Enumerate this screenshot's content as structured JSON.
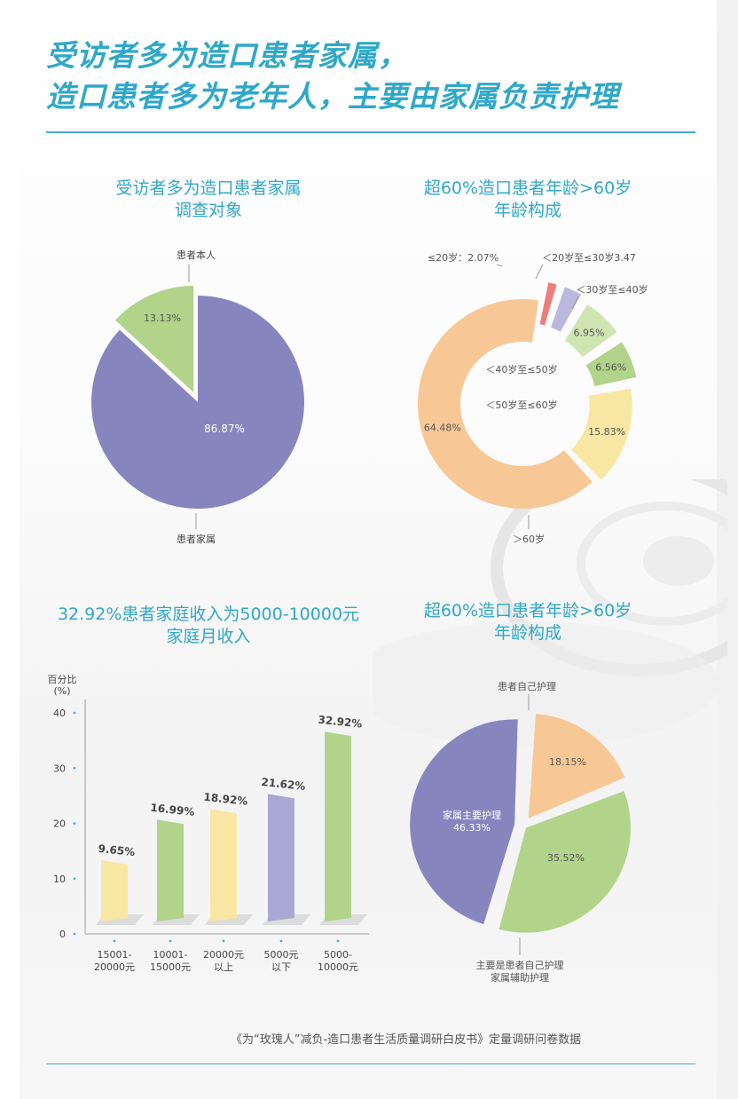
{
  "header": {
    "line1": "受访者多为造口患者家属，",
    "line2": "造口患者多为老年人，主要由家属负责护理"
  },
  "panels": {
    "respondents": {
      "title1": "受访者多为造口患者家属",
      "title2": "调查对象"
    },
    "age": {
      "title1": "超60%造口患者年龄>60岁",
      "title2": "年龄构成"
    },
    "income": {
      "title1": "32.92%患者家庭收入为5000-10000元",
      "title2": "家庭月收入"
    },
    "care": {
      "title1": "超60%造口患者年龄>60岁",
      "title2": "年龄构成"
    }
  },
  "footer": {
    "source": "《为“玫瑰人”减负-造口患者生活质量调研白皮书》定量调研问卷数据"
  },
  "colors": {
    "accent": "#2fa8c8",
    "purple": "#8685be",
    "green": "#b1d38a",
    "orange": "#f7c896",
    "yellow": "#f8e7a3",
    "red": "#ec7d7a",
    "lavender": "#bab8dc",
    "lightgreen": "#cfe6b3"
  },
  "chart_data": [
    {
      "type": "pie",
      "title": "受访者多为造口患者家属",
      "subtitle": "调查对象",
      "slices": [
        {
          "label": "患者家属",
          "value": 86.87,
          "value_label": "86.87%",
          "color": "#8685be"
        },
        {
          "label": "患者本人",
          "value": 13.13,
          "value_label": "13.13%",
          "color": "#b1d38a"
        }
      ]
    },
    {
      "type": "pie",
      "title": "超60%造口患者年龄>60岁",
      "subtitle": "年龄构成",
      "donut": true,
      "slices": [
        {
          "label": "≤20岁：2.07%",
          "value": 2.07,
          "value_label": "",
          "color": "#ec7d7a"
        },
        {
          "label": "＜20岁至≤30岁3.47",
          "value": 3.47,
          "value_label": "",
          "color": "#bab8dc"
        },
        {
          "label": "＜30岁至≤40岁",
          "value": 6.95,
          "value_label": "6.95%",
          "color": "#cfe6b3"
        },
        {
          "label": "＜40岁至≤50岁",
          "value": 6.56,
          "value_label": "6.56%",
          "color": "#b1d38a"
        },
        {
          "label": "＜50岁至≤60岁",
          "value": 15.83,
          "value_label": "15.83%",
          "color": "#f8e7a3"
        },
        {
          "label": "＞60岁",
          "value": 64.48,
          "value_label": "64.48%",
          "color": "#f7c896"
        }
      ]
    },
    {
      "type": "bar",
      "title": "32.92%患者家庭收入为5000-10000元",
      "subtitle": "家庭月收入",
      "ylabel": "百分比\n(%)",
      "ylim": [
        0,
        40
      ],
      "yticks": [
        0,
        10,
        20,
        30,
        40
      ],
      "categories": [
        "15001-\n20000元",
        "10001-\n15000元",
        "20000元\n以上",
        "5000元\n以下",
        "5000-\n10000元"
      ],
      "values": [
        9.65,
        16.99,
        18.92,
        21.62,
        32.92
      ],
      "value_labels": [
        "9.65%",
        "16.99%",
        "18.92%",
        "21.62%",
        "32.92%"
      ],
      "colors": [
        "#f8e7a3",
        "#b1d38a",
        "#f8e7a3",
        "#a9a7d3",
        "#b1d38a"
      ],
      "grid": false
    },
    {
      "type": "pie",
      "title": "超60%造口患者年龄>60岁",
      "subtitle": "年龄构成",
      "slices": [
        {
          "label": "患者自己护理",
          "value": 18.15,
          "value_label": "18.15%",
          "color": "#f7c896"
        },
        {
          "label": "主要是患者自己护理\n家属辅助护理",
          "value": 35.52,
          "value_label": "35.52%",
          "color": "#b1d38a"
        },
        {
          "label": "家属主要护理",
          "value": 46.33,
          "value_label": "46.33%",
          "color": "#8685be"
        }
      ]
    }
  ]
}
